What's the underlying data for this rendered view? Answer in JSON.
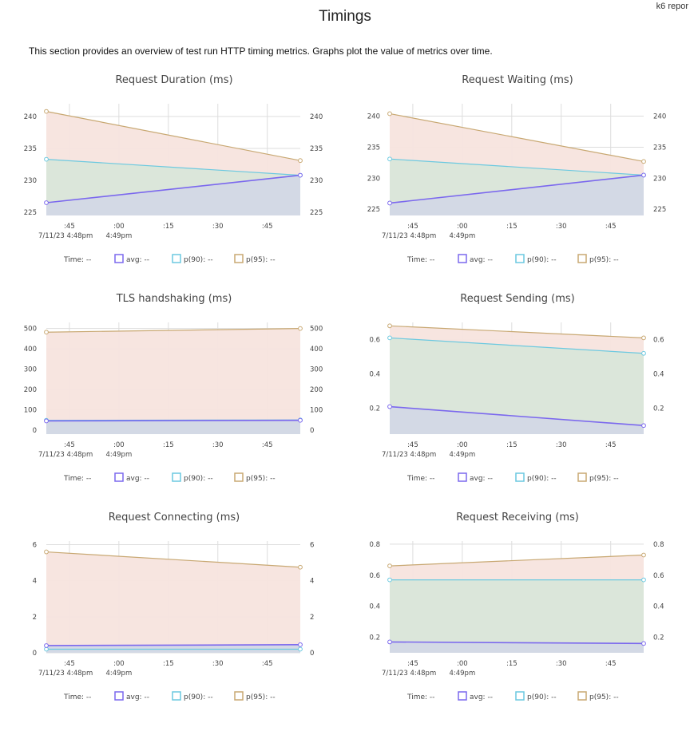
{
  "header": {
    "title": "Timings",
    "report_tag": "k6 repor"
  },
  "intro": "This section provides an overview of test run HTTP timing metrics. Graphs plot the value of metrics over time.",
  "colors": {
    "avg": "#7b68ee",
    "p90": "#6cc9e0",
    "p95": "#c8a872",
    "avg_fill": "#d3d8e6",
    "p90_fill": "#d9e6d9",
    "p95_fill": "#f7e4de",
    "grid": "#dddddd"
  },
  "legend": {
    "time_label": "Time:",
    "avg_label": "avg:",
    "p90_label": "p(90):",
    "p95_label": "p(95):",
    "placeholder": "--"
  },
  "x_axis": {
    "ticks": [
      ":45",
      ":00",
      ":15",
      ":30",
      ":45"
    ],
    "date_label": "7/11/23 4:48pm",
    "hour_label": "4:49pm"
  },
  "chart_data": [
    {
      "type": "area",
      "title": "Request Duration (ms)",
      "x": [
        "4:48:38",
        "4:49:55"
      ],
      "ylim": [
        224.5,
        242
      ],
      "yticks": [
        "225",
        "230",
        "235",
        "240"
      ],
      "series": [
        {
          "name": "avg",
          "values": [
            226.5,
            230.8
          ]
        },
        {
          "name": "p(90)",
          "values": [
            233.3,
            230.8
          ]
        },
        {
          "name": "p(95)",
          "values": [
            240.8,
            233.1
          ]
        }
      ]
    },
    {
      "type": "area",
      "title": "Request Waiting (ms)",
      "x": [
        "4:48:38",
        "4:49:55"
      ],
      "ylim": [
        224,
        242
      ],
      "yticks": [
        "225",
        "230",
        "235",
        "240"
      ],
      "series": [
        {
          "name": "avg",
          "values": [
            226,
            230.5
          ]
        },
        {
          "name": "p(90)",
          "values": [
            233.1,
            230.5
          ]
        },
        {
          "name": "p(95)",
          "values": [
            240.4,
            232.7
          ]
        }
      ]
    },
    {
      "type": "area",
      "title": "TLS handshaking (ms)",
      "x": [
        "4:48:38",
        "4:49:55"
      ],
      "ylim": [
        -20,
        530
      ],
      "yticks": [
        "0",
        "100",
        "200",
        "300",
        "400",
        "500"
      ],
      "series": [
        {
          "name": "avg",
          "values": [
            45,
            48
          ]
        },
        {
          "name": "p(90)",
          "values": [
            48,
            50
          ]
        },
        {
          "name": "p(95)",
          "values": [
            482,
            500
          ]
        }
      ]
    },
    {
      "type": "area",
      "title": "Request Sending (ms)",
      "x": [
        "4:48:38",
        "4:49:55"
      ],
      "ylim": [
        0.05,
        0.7
      ],
      "yticks": [
        "0.2",
        "0.4",
        "0.6"
      ],
      "series": [
        {
          "name": "avg",
          "values": [
            0.21,
            0.1
          ]
        },
        {
          "name": "p(90)",
          "values": [
            0.61,
            0.52
          ]
        },
        {
          "name": "p(95)",
          "values": [
            0.68,
            0.61
          ]
        }
      ]
    },
    {
      "type": "area",
      "title": "Request Connecting (ms)",
      "x": [
        "4:48:38",
        "4:49:55"
      ],
      "ylim": [
        0,
        6.2
      ],
      "yticks": [
        "0",
        "2",
        "4",
        "6"
      ],
      "series": [
        {
          "name": "avg",
          "values": [
            0.4,
            0.45
          ]
        },
        {
          "name": "p(90)",
          "values": [
            0.2,
            0.2
          ]
        },
        {
          "name": "p(95)",
          "values": [
            5.6,
            4.75
          ]
        }
      ]
    },
    {
      "type": "area",
      "title": "Request Receiving (ms)",
      "x": [
        "4:48:38",
        "4:49:55"
      ],
      "ylim": [
        0.1,
        0.82
      ],
      "yticks": [
        "0.2",
        "0.4",
        "0.6",
        "0.8"
      ],
      "series": [
        {
          "name": "avg",
          "values": [
            0.17,
            0.16
          ]
        },
        {
          "name": "p(90)",
          "values": [
            0.57,
            0.57
          ]
        },
        {
          "name": "p(95)",
          "values": [
            0.66,
            0.73
          ]
        }
      ]
    }
  ]
}
